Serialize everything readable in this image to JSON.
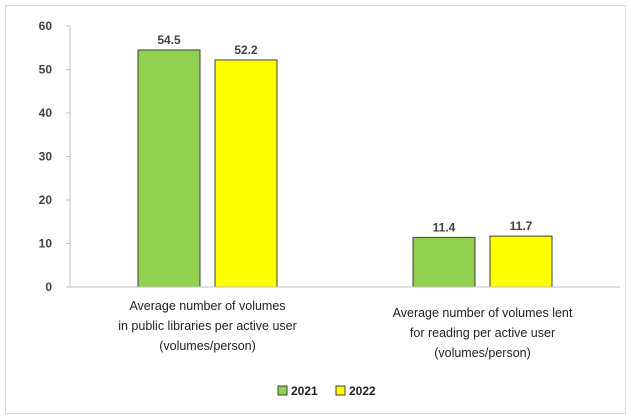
{
  "chart_data": {
    "type": "bar",
    "categories": [
      [
        "Average number of volumes",
        "in public libraries per active user",
        "(volumes/person)"
      ],
      [
        "Average number of volumes lent",
        "for reading per active user",
        "(volumes/person)"
      ]
    ],
    "series": [
      {
        "name": "2021",
        "values": [
          54.5,
          11.4
        ],
        "color": "#92D050"
      },
      {
        "name": "2022",
        "values": [
          52.2,
          11.7
        ],
        "color": "#FFFF00"
      }
    ],
    "ylim": [
      0,
      60
    ],
    "yticks": [
      "0",
      "10",
      "20",
      "30",
      "40",
      "50",
      "60"
    ],
    "data_labels": [
      [
        "54.5",
        "11.4"
      ],
      [
        "52.2",
        "11.7"
      ]
    ],
    "legend_position": "bottom",
    "grid": false
  }
}
